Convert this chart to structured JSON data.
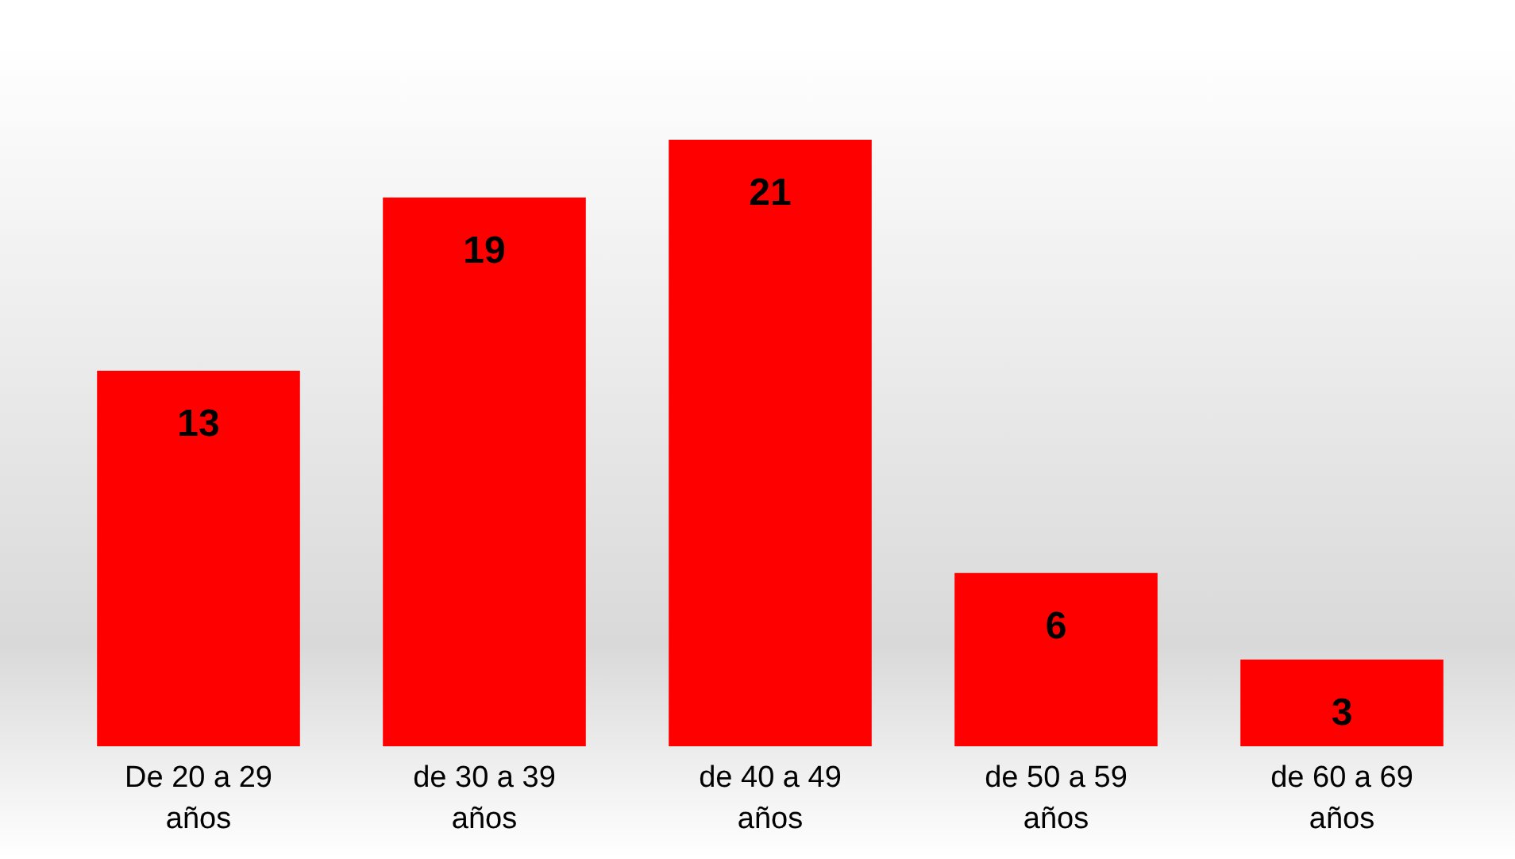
{
  "chart_data": {
    "type": "bar",
    "categories": [
      "De 20 a 29 años",
      "de 30 a 39 años",
      "de 40 a 49 años",
      "de 50 a 59 años",
      "de 60 a 69 años"
    ],
    "values": [
      13,
      19,
      21,
      6,
      3
    ],
    "color": "#ff0000",
    "data_labels": true
  }
}
